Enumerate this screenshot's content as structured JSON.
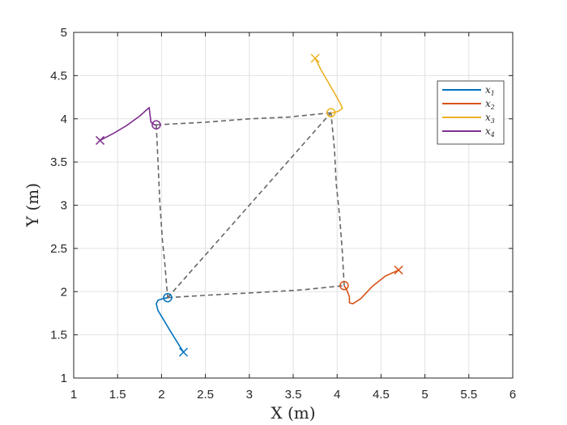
{
  "chart_data": {
    "type": "line",
    "xlabel": "X (m)",
    "ylabel": "Y (m)",
    "xlim": [
      1,
      6
    ],
    "ylim": [
      1,
      5
    ],
    "xticks": [
      1,
      1.5,
      2,
      2.5,
      3,
      3.5,
      4,
      4.5,
      5,
      5.5,
      6
    ],
    "yticks": [
      1,
      1.5,
      2,
      2.5,
      3,
      3.5,
      4,
      4.5,
      5
    ],
    "xtick_labels": [
      "1",
      "1.5",
      "2",
      "2.5",
      "3",
      "3.5",
      "4",
      "4.5",
      "5",
      "5.5",
      "6"
    ],
    "ytick_labels": [
      "1",
      "1.5",
      "2",
      "2.5",
      "3",
      "3.5",
      "4",
      "4.5",
      "5"
    ],
    "grid": true,
    "legend": "top-right",
    "series": [
      {
        "name": "x",
        "subscript": "1",
        "color": "#0072BD",
        "start_marker": "x",
        "end_marker": "o",
        "points": [
          [
            2.25,
            1.3
          ],
          [
            2.17,
            1.43
          ],
          [
            2.09,
            1.56
          ],
          [
            2.02,
            1.68
          ],
          [
            1.96,
            1.78
          ],
          [
            1.94,
            1.86
          ],
          [
            1.96,
            1.9
          ],
          [
            2.02,
            1.92
          ],
          [
            2.07,
            1.93
          ]
        ]
      },
      {
        "name": "x",
        "subscript": "2",
        "color": "#D95319",
        "start_marker": "x",
        "end_marker": "o",
        "points": [
          [
            4.7,
            2.25
          ],
          [
            4.55,
            2.18
          ],
          [
            4.4,
            2.06
          ],
          [
            4.27,
            1.92
          ],
          [
            4.18,
            1.86
          ],
          [
            4.14,
            1.87
          ],
          [
            4.14,
            1.94
          ],
          [
            4.11,
            2.02
          ],
          [
            4.08,
            2.07
          ]
        ]
      },
      {
        "name": "x",
        "subscript": "3",
        "color": "#EDB120",
        "start_marker": "x",
        "end_marker": "o",
        "points": [
          [
            3.75,
            4.7
          ],
          [
            3.82,
            4.56
          ],
          [
            3.9,
            4.42
          ],
          [
            3.98,
            4.28
          ],
          [
            4.04,
            4.17
          ],
          [
            4.06,
            4.12
          ],
          [
            4.02,
            4.09
          ],
          [
            3.96,
            4.07
          ],
          [
            3.93,
            4.07
          ]
        ]
      },
      {
        "name": "x",
        "subscript": "4",
        "color": "#7E2F8E",
        "start_marker": "x",
        "end_marker": "o",
        "points": [
          [
            1.3,
            3.75
          ],
          [
            1.45,
            3.83
          ],
          [
            1.6,
            3.92
          ],
          [
            1.75,
            4.03
          ],
          [
            1.86,
            4.13
          ],
          [
            1.87,
            4.04
          ],
          [
            1.88,
            3.96
          ],
          [
            1.92,
            3.93
          ],
          [
            1.94,
            3.93
          ]
        ]
      }
    ],
    "formation_links": {
      "style": "dashed",
      "color": "#666666",
      "paths": [
        [
          [
            2.07,
            1.93
          ],
          [
            2.55,
            1.96
          ],
          [
            3.1,
            1.99
          ],
          [
            3.6,
            2.02
          ],
          [
            4.08,
            2.07
          ]
        ],
        [
          [
            4.08,
            2.07
          ],
          [
            4.06,
            2.45
          ],
          [
            4.03,
            2.85
          ],
          [
            3.99,
            3.25
          ],
          [
            3.97,
            3.65
          ],
          [
            3.93,
            4.07
          ]
        ],
        [
          [
            3.93,
            4.07
          ],
          [
            3.45,
            4.02
          ],
          [
            3.0,
            4.0
          ],
          [
            2.5,
            3.96
          ],
          [
            1.94,
            3.93
          ]
        ],
        [
          [
            1.94,
            3.93
          ],
          [
            1.96,
            3.5
          ],
          [
            1.98,
            3.05
          ],
          [
            2.01,
            2.6
          ],
          [
            2.04,
            2.3
          ],
          [
            2.07,
            1.93
          ]
        ],
        [
          [
            2.07,
            1.93
          ],
          [
            3.93,
            4.07
          ]
        ]
      ]
    }
  }
}
